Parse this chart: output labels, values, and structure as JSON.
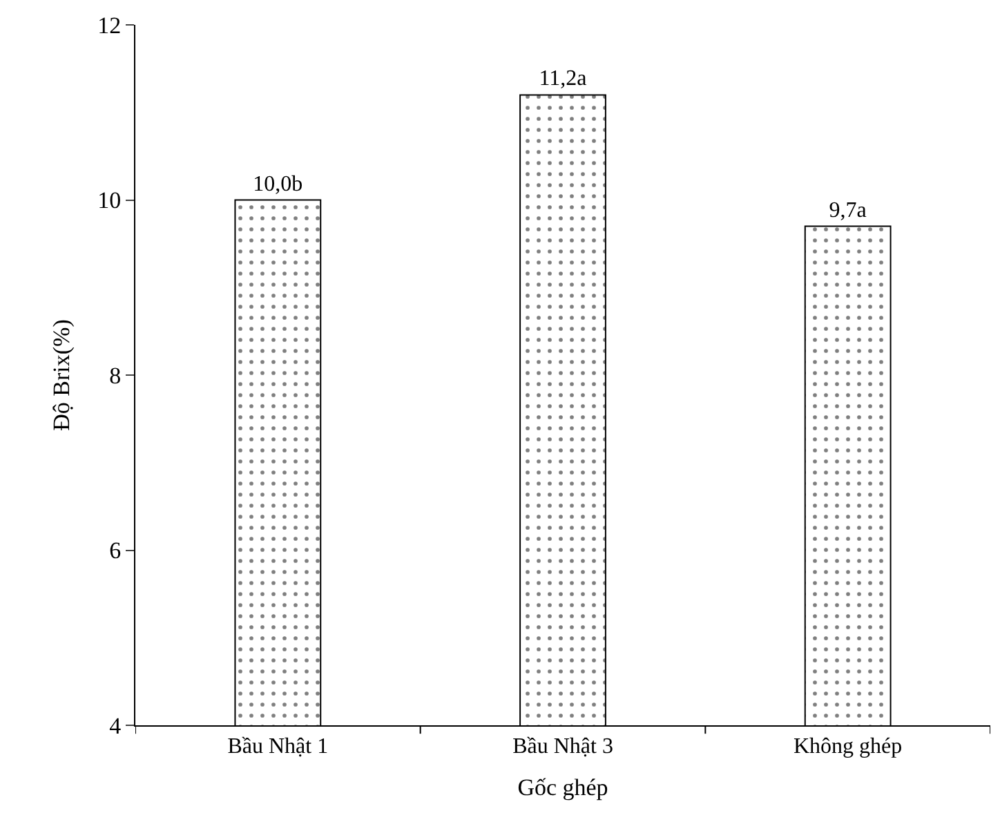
{
  "chart_data": {
    "type": "bar",
    "xlabel": "Gốc ghép",
    "ylabel": "Độ Brix(%)",
    "categories": [
      "Bầu Nhật 1",
      "Bầu Nhật 3",
      "Không ghép"
    ],
    "values": [
      10.0,
      11.2,
      9.7
    ],
    "value_labels": [
      "10,0b",
      "11,2a",
      "9,7a"
    ],
    "ylim": [
      4,
      12
    ],
    "yticks": [
      4,
      6,
      8,
      10,
      12
    ]
  }
}
